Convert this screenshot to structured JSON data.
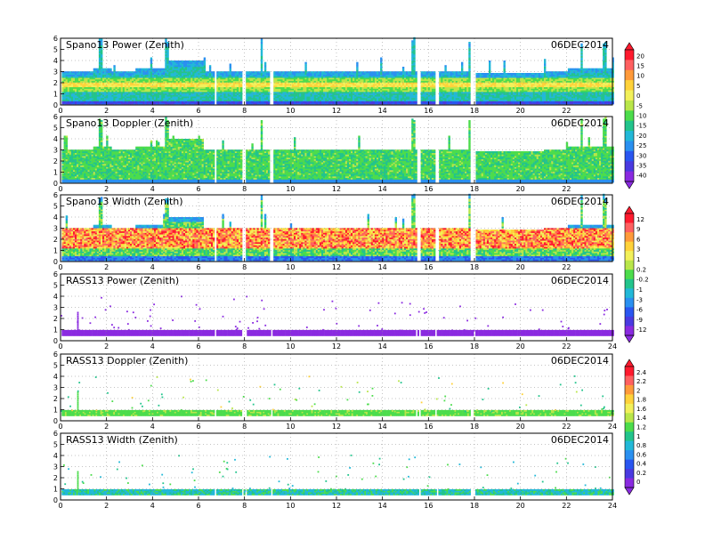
{
  "chart_data": [
    {
      "type": "heatmap",
      "title": "Spano13 Power (Zenith)",
      "date": "06DEC2014",
      "xlim": [
        0,
        24
      ],
      "ylim": [
        0,
        6
      ],
      "x_ticks": [
        "0",
        "2",
        "4",
        "6",
        "8",
        "10",
        "12",
        "14",
        "16",
        "18",
        "20",
        "22"
      ],
      "y_ticks": [
        "0",
        "1",
        "2",
        "3",
        "4",
        "5",
        "6"
      ],
      "grid": true,
      "gap_hours": [
        [
          6.65,
          6.75
        ],
        [
          7.85,
          8.05
        ],
        [
          9.1,
          9.2
        ],
        [
          15.45,
          15.6
        ],
        [
          16.25,
          16.4
        ],
        [
          17.8,
          18.0
        ]
      ],
      "colorbar": {
        "ticks": [
          "20",
          "15",
          "10",
          "5",
          "0",
          "-5",
          "-10",
          "-15",
          "-20",
          "-25",
          "-30",
          "-35",
          "-40"
        ],
        "colors": [
          "#ff1a2e",
          "#ff6060",
          "#ff9a3a",
          "#ffd23a",
          "#f2f05a",
          "#b9e64a",
          "#4cdc4c",
          "#22c48c",
          "#22b8d8",
          "#2a90f0",
          "#2a56f0",
          "#4a3ae0",
          "#8a2ae0"
        ]
      }
    },
    {
      "type": "heatmap",
      "title": "Spano13 Doppler (Zenith)",
      "date": "06DEC2014",
      "xlim": [
        0,
        24
      ],
      "ylim": [
        0,
        6
      ],
      "x_ticks": [
        "0",
        "2",
        "4",
        "6",
        "8",
        "10",
        "12",
        "14",
        "16",
        "18",
        "20",
        "22"
      ],
      "y_ticks": [
        "0",
        "1",
        "2",
        "3",
        "4",
        "5",
        "6"
      ],
      "grid": true
    },
    {
      "type": "heatmap",
      "title": "Spano13 Width (Zenith)",
      "date": "06DEC2014",
      "xlim": [
        0,
        24
      ],
      "ylim": [
        0,
        6
      ],
      "x_ticks": [
        "0",
        "2",
        "4",
        "6",
        "8",
        "10",
        "12",
        "14",
        "16",
        "18",
        "20",
        "22"
      ],
      "y_ticks": [
        "0",
        "1",
        "2",
        "3",
        "4",
        "5",
        "6"
      ],
      "grid": true,
      "colorbar": {
        "ticks": [
          "12",
          "9",
          "6",
          "3",
          "1",
          "0.2",
          "-0.2",
          "-1",
          "-3",
          "-6",
          "-9",
          "-12"
        ],
        "colors": [
          "#ff1a2e",
          "#ff6060",
          "#ff9a3a",
          "#ffd23a",
          "#f2f05a",
          "#b9e64a",
          "#4cdc4c",
          "#22c48c",
          "#22b8d8",
          "#2a90f0",
          "#2a56f0",
          "#4a3ae0",
          "#8a2ae0"
        ]
      }
    },
    {
      "type": "heatmap",
      "title": "RASS13 Power (Zenith)",
      "date": "06DEC2014",
      "xlim": [
        0,
        24
      ],
      "ylim": [
        0,
        6
      ],
      "x_ticks": [
        "0",
        "2",
        "4",
        "6",
        "8",
        "10",
        "12",
        "14",
        "16",
        "18",
        "20",
        "22",
        "24"
      ],
      "y_ticks": [
        "0",
        "1",
        "2",
        "3",
        "4",
        "5",
        "6"
      ],
      "grid": true
    },
    {
      "type": "heatmap",
      "title": "RASS13 Doppler (Zenith)",
      "date": "06DEC2014",
      "xlim": [
        0,
        24
      ],
      "ylim": [
        0,
        6
      ],
      "x_ticks": [
        "0",
        "2",
        "4",
        "6",
        "8",
        "10",
        "12",
        "14",
        "16",
        "18",
        "20",
        "22",
        "24"
      ],
      "y_ticks": [
        "0",
        "1",
        "2",
        "3",
        "4",
        "5",
        "6"
      ],
      "grid": true,
      "colorbar": {
        "ticks": [
          "2.4",
          "2.2",
          "2",
          "1.8",
          "1.6",
          "1.4",
          "1.2",
          "1",
          "0.8",
          "0.6",
          "0.4",
          "0.2",
          "0"
        ],
        "colors": [
          "#ff1a2e",
          "#ff6060",
          "#ff9a3a",
          "#ffd23a",
          "#f2f05a",
          "#b9e64a",
          "#4cdc4c",
          "#22c48c",
          "#22b8d8",
          "#2a90f0",
          "#2a56f0",
          "#4a3ae0",
          "#8a2ae0"
        ]
      }
    },
    {
      "type": "heatmap",
      "title": "RASS13 Width (Zenith)",
      "date": "06DEC2014",
      "xlim": [
        0,
        24
      ],
      "ylim": [
        0,
        6
      ],
      "x_ticks": [
        "0",
        "2",
        "4",
        "6",
        "8",
        "10",
        "12",
        "14",
        "16",
        "18",
        "20",
        "22",
        "24"
      ],
      "y_ticks": [
        "0",
        "1",
        "2",
        "3",
        "4",
        "5",
        "6"
      ],
      "grid": true
    }
  ]
}
